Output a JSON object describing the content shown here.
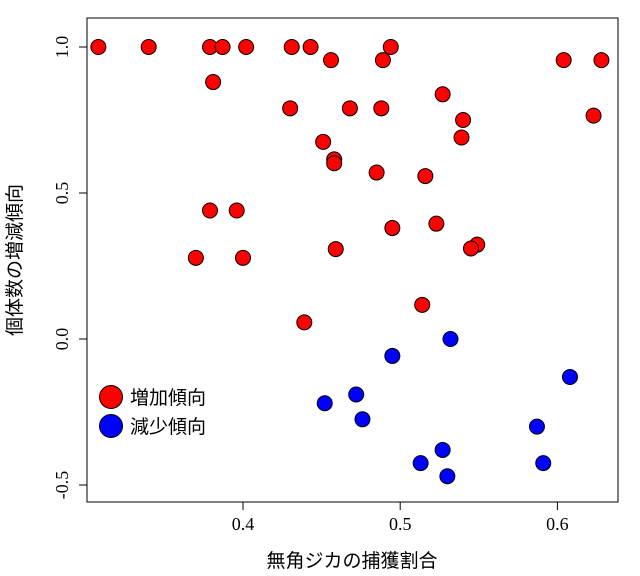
{
  "chart_data": {
    "type": "scatter",
    "xlabel": "無角ジカの捕獲割合",
    "ylabel": "個体数の増減傾向",
    "xlim": [
      0.3,
      0.63
    ],
    "ylim": [
      -0.5,
      1.0
    ],
    "x_ticks": [
      {
        "value": 0.4,
        "label": "0.4"
      },
      {
        "value": 0.5,
        "label": "0.5"
      },
      {
        "value": 0.6,
        "label": "0.6"
      }
    ],
    "y_ticks": [
      {
        "value": -0.5,
        "label": "-0.5"
      },
      {
        "value": 0.0,
        "label": "0.0"
      },
      {
        "value": 0.5,
        "label": "0.5"
      },
      {
        "value": 1.0,
        "label": "1.0"
      }
    ],
    "legend_position": "bottom-left",
    "series": [
      {
        "name": "増加傾向",
        "color": "#ff0000",
        "points": [
          [
            0.308,
            1.0
          ],
          [
            0.34,
            1.0
          ],
          [
            0.379,
            1.0
          ],
          [
            0.387,
            1.0
          ],
          [
            0.402,
            1.0
          ],
          [
            0.431,
            1.0
          ],
          [
            0.443,
            1.0
          ],
          [
            0.494,
            1.0
          ],
          [
            0.456,
            0.955
          ],
          [
            0.489,
            0.955
          ],
          [
            0.604,
            0.955
          ],
          [
            0.628,
            0.955
          ],
          [
            0.381,
            0.88
          ],
          [
            0.527,
            0.838
          ],
          [
            0.43,
            0.79
          ],
          [
            0.468,
            0.79
          ],
          [
            0.488,
            0.79
          ],
          [
            0.623,
            0.765
          ],
          [
            0.54,
            0.75
          ],
          [
            0.539,
            0.69
          ],
          [
            0.451,
            0.675
          ],
          [
            0.458,
            0.615
          ],
          [
            0.458,
            0.602
          ],
          [
            0.485,
            0.57
          ],
          [
            0.516,
            0.558
          ],
          [
            0.379,
            0.44
          ],
          [
            0.396,
            0.44
          ],
          [
            0.495,
            0.38
          ],
          [
            0.523,
            0.395
          ],
          [
            0.549,
            0.323
          ],
          [
            0.545,
            0.31
          ],
          [
            0.459,
            0.308
          ],
          [
            0.37,
            0.278
          ],
          [
            0.4,
            0.278
          ],
          [
            0.514,
            0.117
          ],
          [
            0.439,
            0.057
          ]
        ]
      },
      {
        "name": "減少傾向",
        "color": "#0000ff",
        "points": [
          [
            0.532,
            0.0
          ],
          [
            0.495,
            -0.058
          ],
          [
            0.608,
            -0.13
          ],
          [
            0.472,
            -0.19
          ],
          [
            0.452,
            -0.22
          ],
          [
            0.476,
            -0.275
          ],
          [
            0.587,
            -0.3
          ],
          [
            0.527,
            -0.38
          ],
          [
            0.513,
            -0.425
          ],
          [
            0.591,
            -0.425
          ],
          [
            0.53,
            -0.47
          ]
        ]
      }
    ]
  }
}
